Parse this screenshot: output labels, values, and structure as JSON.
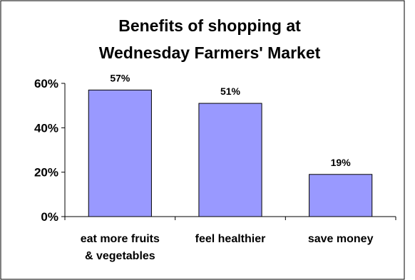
{
  "chart_data": {
    "type": "bar",
    "title": [
      "Benefits of shopping at",
      "Wednesday Farmers' Market"
    ],
    "categories": [
      [
        "eat more fruits",
        "& vegetables"
      ],
      [
        "feel healthier"
      ],
      [
        "save money"
      ]
    ],
    "values": [
      57,
      51,
      19
    ],
    "data_labels": [
      "57%",
      "51%",
      "19%"
    ],
    "ylim": [
      0,
      60
    ],
    "yticks": [
      0,
      20,
      40,
      60
    ],
    "ytick_labels": [
      "0%",
      "20%",
      "40%",
      "60%"
    ],
    "xlabel": "",
    "ylabel": "",
    "grid": false,
    "bar_color": "#9999ff",
    "bar_edge_color": "#000000"
  }
}
